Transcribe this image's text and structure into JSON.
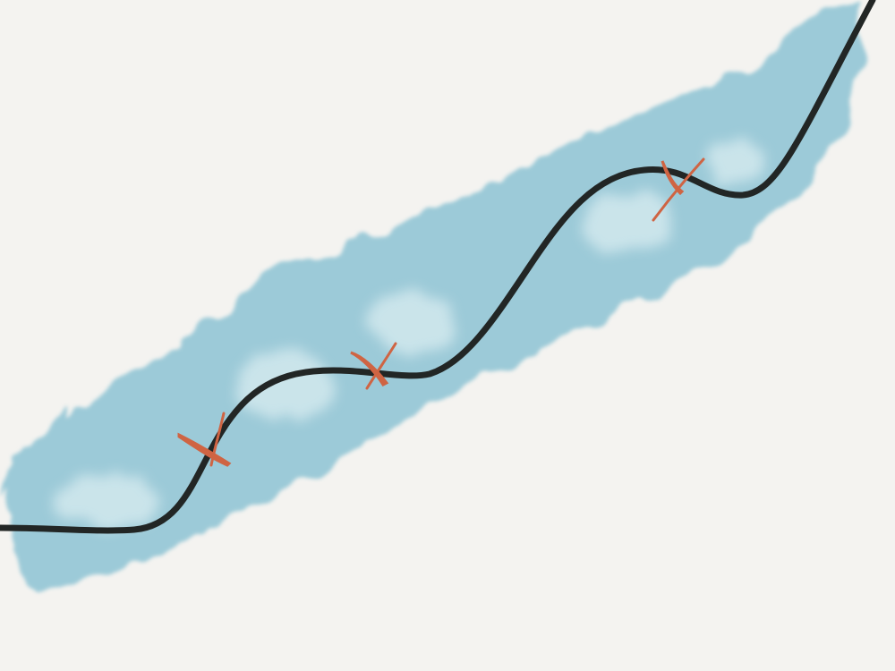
{
  "colors": {
    "background": "#f4f3f0",
    "band_fill": "#9ccad8",
    "band_light": "#d9ecf0",
    "curve": "#222625",
    "markers": "#cf6443"
  },
  "scene": {
    "texture": "watercolor wash",
    "curve_style": "smooth brush stroke",
    "marker_glyph": "x-mark",
    "marker_count": 3,
    "visible_text": []
  }
}
